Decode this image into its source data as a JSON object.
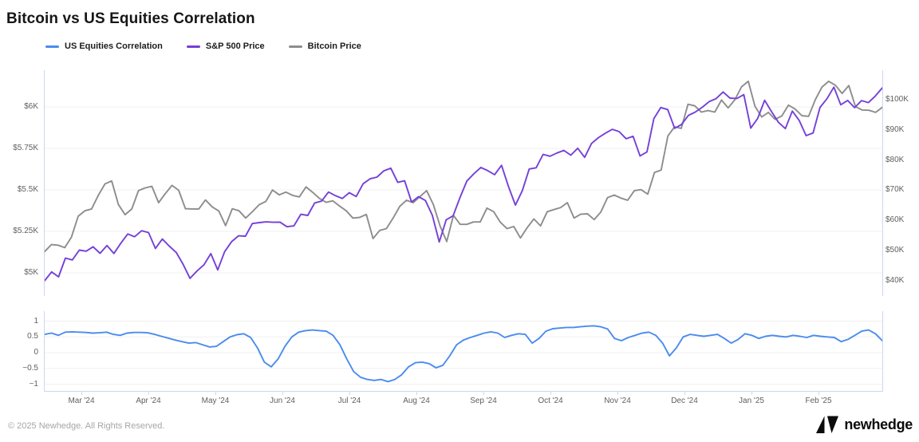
{
  "title": "Bitcoin vs US Equities Correlation",
  "legend": [
    {
      "label": "US Equities Correlation",
      "color": "#4a8cee"
    },
    {
      "label": "S&P 500 Price",
      "color": "#7540d8"
    },
    {
      "label": "Bitcoin Price",
      "color": "#8d8d8d"
    }
  ],
  "footer": {
    "copyright": "© 2025 Newhedge. All Rights Reserved.",
    "brand": "newhedge"
  },
  "colors": {
    "axis_line": "#c9d7f0",
    "gridline": "#f0f0f1",
    "tick_text": "#5f5f5f"
  },
  "chart_data": [
    {
      "type": "line",
      "name": "price-panel",
      "grid": true,
      "legend_position": "top-left",
      "left_axis": {
        "tick_labels": [
          "$6K",
          "$5.75K",
          "$5.5K",
          "$5.25K",
          "$5K"
        ],
        "tick_values": [
          6000,
          5750,
          5500,
          5250,
          5000
        ],
        "ylim": [
          4880,
          6240
        ]
      },
      "right_axis": {
        "tick_labels": [
          "$100K",
          "$90K",
          "$80K",
          "$70K",
          "$60K",
          "$50K",
          "$40K"
        ],
        "tick_values": [
          100,
          90,
          80,
          70,
          60,
          50,
          40
        ],
        "ylim": [
          34,
          110
        ]
      },
      "series": [
        {
          "name": "Bitcoin Price",
          "axis": "right",
          "unit": "$K",
          "color": "#8d8d8d",
          "values": [
            49.7,
            52.0,
            51.8,
            51.0,
            54.5,
            61.4,
            63.2,
            63.8,
            68.3,
            72.1,
            73.1,
            65.3,
            61.9,
            63.8,
            69.9,
            70.8,
            71.3,
            65.9,
            68.9,
            71.6,
            70.0,
            63.9,
            63.8,
            63.8,
            66.8,
            64.5,
            63.1,
            58.3,
            63.9,
            63.2,
            60.8,
            62.9,
            65.2,
            66.3,
            70.1,
            68.5,
            69.4,
            68.3,
            67.8,
            71.1,
            69.3,
            67.3,
            66.0,
            66.5,
            64.8,
            63.2,
            60.8,
            61.0,
            62.0,
            54.0,
            56.7,
            57.3,
            60.8,
            64.7,
            66.7,
            65.9,
            67.9,
            69.9,
            65.3,
            58.2,
            53.0,
            61.7,
            58.7,
            58.7,
            59.5,
            59.5,
            64.1,
            62.9,
            59.4,
            57.3,
            58.0,
            54.2,
            57.6,
            60.5,
            58.2,
            62.9,
            63.6,
            64.3,
            65.9,
            60.8,
            62.1,
            62.2,
            60.3,
            62.8,
            67.6,
            68.4,
            67.4,
            66.7,
            69.9,
            70.2,
            68.7,
            75.9,
            76.7,
            88.0,
            91.0,
            90.5,
            98.5,
            98.0,
            95.9,
            96.4,
            95.9,
            99.9,
            97.3,
            100.0,
            104.3,
            106.1,
            97.8,
            94.3,
            95.8,
            93.5,
            94.6,
            98.2,
            96.9,
            94.7,
            94.5,
            100.0,
            104.2,
            106.1,
            104.8,
            102.1,
            104.7,
            97.7,
            96.6,
            96.5,
            95.8,
            97.5
          ]
        },
        {
          "name": "S&P 500 Price",
          "axis": "left",
          "unit": "$",
          "color": "#7540d8",
          "values": [
            4953,
            5006,
            4976,
            5089,
            5078,
            5137,
            5131,
            5157,
            5118,
            5165,
            5117,
            5179,
            5234,
            5218,
            5254,
            5243,
            5147,
            5204,
            5161,
            5123,
            5051,
            4967,
            5011,
            5048,
            5116,
            5018,
            5128,
            5188,
            5223,
            5221,
            5297,
            5303,
            5307,
            5305,
            5306,
            5278,
            5283,
            5353,
            5346,
            5421,
            5432,
            5487,
            5465,
            5448,
            5483,
            5460,
            5537,
            5567,
            5577,
            5615,
            5631,
            5545,
            5555,
            5427,
            5459,
            5436,
            5346,
            5186,
            5319,
            5344,
            5455,
            5554,
            5597,
            5635,
            5616,
            5592,
            5648,
            5520,
            5408,
            5496,
            5626,
            5633,
            5714,
            5703,
            5722,
            5738,
            5709,
            5751,
            5696,
            5780,
            5815,
            5842,
            5865,
            5851,
            5808,
            5823,
            5705,
            5729,
            5929,
            5996,
            5984,
            5871,
            5894,
            5949,
            5969,
            5998,
            6032,
            6050,
            6090,
            6053,
            6051,
            6074,
            5872,
            5931,
            6040,
            5971,
            5907,
            5869,
            5975,
            5918,
            5827,
            5843,
            5997,
            6049,
            6119,
            6013,
            6039,
            5995,
            6038,
            6026,
            6066,
            6115
          ]
        }
      ]
    },
    {
      "type": "line",
      "name": "correlation-panel",
      "grid": true,
      "y_axis": {
        "tick_labels": [
          "1",
          "0.5",
          "0",
          "−0.5",
          "−1"
        ],
        "tick_values": [
          1,
          0.5,
          0,
          -0.5,
          -1
        ],
        "ylim": [
          -1.22,
          1.32
        ]
      },
      "x_tick_labels": [
        "Mar '24",
        "Apr '24",
        "May '24",
        "Jun '24",
        "Jul '24",
        "Aug '24",
        "Sep '24",
        "Oct '24",
        "Nov '24",
        "Dec '24",
        "Jan '25",
        "Feb '25"
      ],
      "series": [
        {
          "name": "US Equities Correlation",
          "color": "#4a8cee",
          "values": [
            0.58,
            0.62,
            0.55,
            0.65,
            0.66,
            0.65,
            0.64,
            0.62,
            0.63,
            0.65,
            0.58,
            0.55,
            0.62,
            0.64,
            0.64,
            0.63,
            0.58,
            0.52,
            0.46,
            0.4,
            0.35,
            0.3,
            0.32,
            0.25,
            0.18,
            0.2,
            0.35,
            0.5,
            0.57,
            0.6,
            0.48,
            0.15,
            -0.3,
            -0.45,
            -0.2,
            0.2,
            0.5,
            0.65,
            0.7,
            0.72,
            0.7,
            0.68,
            0.55,
            0.25,
            -0.2,
            -0.6,
            -0.78,
            -0.85,
            -0.88,
            -0.85,
            -0.92,
            -0.85,
            -0.7,
            -0.45,
            -0.32,
            -0.3,
            -0.35,
            -0.48,
            -0.4,
            -0.1,
            0.25,
            0.4,
            0.48,
            0.55,
            0.62,
            0.66,
            0.62,
            0.48,
            0.55,
            0.6,
            0.58,
            0.3,
            0.45,
            0.68,
            0.76,
            0.78,
            0.8,
            0.8,
            0.82,
            0.84,
            0.85,
            0.82,
            0.75,
            0.45,
            0.38,
            0.48,
            0.55,
            0.62,
            0.65,
            0.55,
            0.3,
            -0.1,
            0.15,
            0.5,
            0.58,
            0.55,
            0.52,
            0.55,
            0.58,
            0.45,
            0.3,
            0.42,
            0.6,
            0.55,
            0.45,
            0.52,
            0.55,
            0.52,
            0.5,
            0.55,
            0.52,
            0.48,
            0.55,
            0.52,
            0.5,
            0.48,
            0.35,
            0.42,
            0.55,
            0.68,
            0.72,
            0.6,
            0.38
          ]
        }
      ]
    }
  ]
}
